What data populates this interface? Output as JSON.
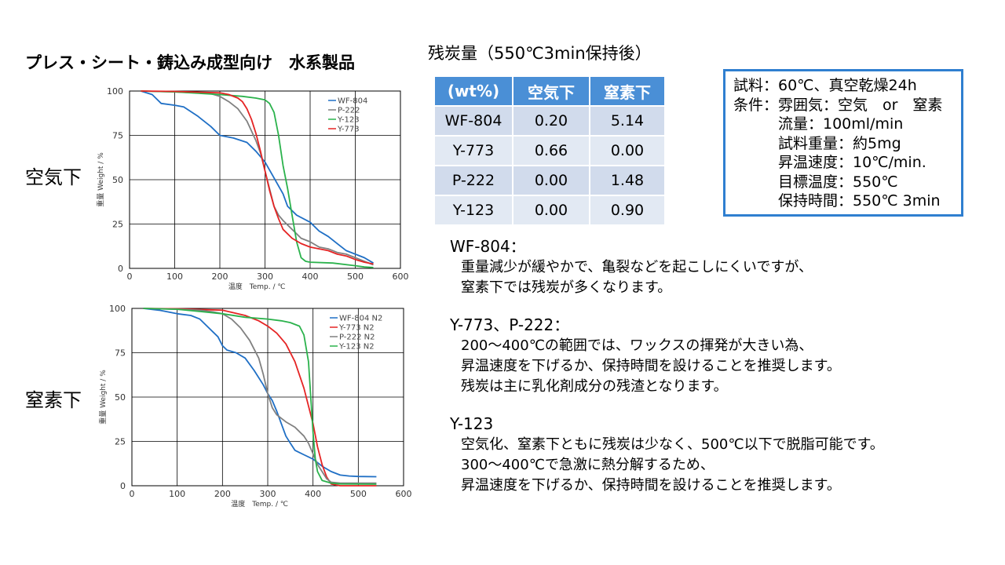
{
  "slide_title": "プレス・シート・鋳込み成型向け　水系製品",
  "side_labels": {
    "air": "空気下",
    "n2": "窒素下"
  },
  "residue": {
    "title": "残炭量（550℃3min保持後）",
    "headers": [
      "(wt%)",
      "空気下",
      "窒素下"
    ],
    "rows": [
      [
        "WF-804",
        "0.20",
        "5.14"
      ],
      [
        "Y-773",
        "0.66",
        "0.00"
      ],
      [
        "P-222",
        "0.00",
        "1.48"
      ],
      [
        "Y-123",
        "0.00",
        "0.90"
      ]
    ]
  },
  "conditions": [
    "試料：60℃、真空乾燥24h",
    "条件：雰囲気：空気　or　窒素",
    "　　　流量：100ml/min",
    "　　　試料重量：約5mg",
    "　　　昇温速度：10℃/min.",
    "　　　目標温度：550℃",
    "　　　保持時間：550℃ 3min"
  ],
  "notes": [
    {
      "head": "WF-804：",
      "lines": [
        "重量減少が緩やかで、亀裂などを起こしにくいですが、",
        "窒素下では残炭が多くなります。"
      ]
    },
    {
      "head": "Y-773、P-222：",
      "lines": [
        "200～400℃の範囲では、ワックスの揮発が大きい為、",
        "昇温速度を下げるか、保持時間を設けることを推奨します。",
        "残炭は主に乳化剤成分の残渣となります。"
      ]
    },
    {
      "head": "Y-123",
      "lines": [
        "空気化、窒素下ともに残炭は少なく、500℃以下で脱脂可能です。",
        "300～400℃で急激に熱分解するため、",
        "昇温速度を下げるか、保持時間を設けることを推奨します。"
      ]
    }
  ],
  "chart_data": [
    {
      "type": "line",
      "atmosphere": "air",
      "xlabel": "温度　Temp. / ℃",
      "ylabel": "重量 Weight / %",
      "xlim": [
        0,
        600
      ],
      "ylim": [
        0,
        100
      ],
      "xticks": [
        "0",
        "100",
        "200",
        "300",
        "400",
        "500",
        "600"
      ],
      "yticks": [
        "0",
        "25",
        "50",
        "75",
        "100"
      ],
      "grid": true,
      "legend_position": "top-right",
      "series": [
        {
          "name": "WF-804",
          "color": "#1f6fc5",
          "points": [
            [
              25,
              100
            ],
            [
              50,
              98
            ],
            [
              70,
              93
            ],
            [
              100,
              92
            ],
            [
              120,
              91
            ],
            [
              150,
              86
            ],
            [
              180,
              80
            ],
            [
              200,
              75
            ],
            [
              230,
              73.5
            ],
            [
              260,
              71
            ],
            [
              280,
              66
            ],
            [
              300,
              60
            ],
            [
              320,
              51
            ],
            [
              340,
              42
            ],
            [
              350,
              35
            ],
            [
              370,
              30
            ],
            [
              400,
              26
            ],
            [
              420,
              21
            ],
            [
              440,
              18
            ],
            [
              460,
              14
            ],
            [
              480,
              10
            ],
            [
              500,
              8
            ],
            [
              520,
              6
            ],
            [
              540,
              3
            ]
          ]
        },
        {
          "name": "P-222",
          "color": "#808080",
          "points": [
            [
              25,
              100
            ],
            [
              100,
              99.5
            ],
            [
              150,
              99
            ],
            [
              180,
              98.5
            ],
            [
              200,
              97
            ],
            [
              220,
              94
            ],
            [
              240,
              90
            ],
            [
              260,
              83
            ],
            [
              280,
              72
            ],
            [
              290,
              65
            ],
            [
              300,
              55
            ],
            [
              310,
              45
            ],
            [
              320,
              35
            ],
            [
              330,
              30
            ],
            [
              340,
              27
            ],
            [
              360,
              22
            ],
            [
              380,
              17
            ],
            [
              400,
              15
            ],
            [
              420,
              12
            ],
            [
              440,
              11
            ],
            [
              460,
              9
            ],
            [
              480,
              8
            ],
            [
              500,
              6
            ],
            [
              520,
              4
            ],
            [
              540,
              2
            ]
          ]
        },
        {
          "name": "Y-123",
          "color": "#2bb24c",
          "points": [
            [
              25,
              100
            ],
            [
              100,
              99.5
            ],
            [
              200,
              98
            ],
            [
              250,
              97
            ],
            [
              280,
              96
            ],
            [
              300,
              95
            ],
            [
              310,
              93
            ],
            [
              320,
              88
            ],
            [
              330,
              75
            ],
            [
              340,
              58
            ],
            [
              350,
              45
            ],
            [
              360,
              30
            ],
            [
              370,
              15
            ],
            [
              380,
              6
            ],
            [
              390,
              4
            ],
            [
              400,
              3.5
            ],
            [
              450,
              3
            ],
            [
              500,
              1.5
            ],
            [
              520,
              0.8
            ],
            [
              540,
              0.5
            ]
          ]
        },
        {
          "name": "Y-773",
          "color": "#e52424",
          "points": [
            [
              25,
              100
            ],
            [
              100,
              99.8
            ],
            [
              200,
              99
            ],
            [
              220,
              98
            ],
            [
              240,
              96
            ],
            [
              250,
              94
            ],
            [
              260,
              90
            ],
            [
              270,
              84
            ],
            [
              280,
              76
            ],
            [
              290,
              66
            ],
            [
              300,
              55
            ],
            [
              310,
              44
            ],
            [
              320,
              35
            ],
            [
              330,
              28
            ],
            [
              340,
              22
            ],
            [
              360,
              17
            ],
            [
              380,
              14
            ],
            [
              400,
              12
            ],
            [
              420,
              11
            ],
            [
              440,
              10
            ],
            [
              460,
              8
            ],
            [
              480,
              7
            ],
            [
              500,
              5
            ],
            [
              520,
              3.5
            ],
            [
              540,
              2.5
            ]
          ]
        }
      ]
    },
    {
      "type": "line",
      "atmosphere": "n2",
      "xlabel": "温度　Temp. / ℃",
      "ylabel": "重量 Weight / %",
      "xlim": [
        0,
        600
      ],
      "ylim": [
        0,
        100
      ],
      "xticks": [
        "0",
        "100",
        "200",
        "300",
        "400",
        "500",
        "600"
      ],
      "yticks": [
        "0",
        "25",
        "50",
        "75",
        "100"
      ],
      "grid": true,
      "legend_position": "top-right",
      "series": [
        {
          "name": "WF-804 N2",
          "color": "#1f6fc5",
          "points": [
            [
              25,
              100
            ],
            [
              60,
              99
            ],
            [
              100,
              97
            ],
            [
              130,
              96
            ],
            [
              150,
              94
            ],
            [
              170,
              89
            ],
            [
              190,
              84
            ],
            [
              200,
              79
            ],
            [
              210,
              76.5
            ],
            [
              230,
              75
            ],
            [
              250,
              72
            ],
            [
              270,
              65
            ],
            [
              290,
              57
            ],
            [
              300,
              52
            ],
            [
              310,
              48
            ],
            [
              320,
              42
            ],
            [
              330,
              35
            ],
            [
              340,
              28
            ],
            [
              350,
              24
            ],
            [
              360,
              20
            ],
            [
              380,
              17.5
            ],
            [
              400,
              15
            ],
            [
              420,
              11
            ],
            [
              440,
              8
            ],
            [
              460,
              6
            ],
            [
              480,
              5.5
            ],
            [
              500,
              5.2
            ],
            [
              540,
              5.1
            ]
          ]
        },
        {
          "name": "Y-773  N2",
          "color": "#e52424",
          "points": [
            [
              25,
              100
            ],
            [
              100,
              99.8
            ],
            [
              200,
              99
            ],
            [
              250,
              96
            ],
            [
              280,
              93
            ],
            [
              300,
              90
            ],
            [
              320,
              86
            ],
            [
              340,
              80
            ],
            [
              360,
              70
            ],
            [
              380,
              55
            ],
            [
              390,
              45
            ],
            [
              400,
              35
            ],
            [
              410,
              22
            ],
            [
              420,
              12
            ],
            [
              430,
              5
            ],
            [
              440,
              1
            ],
            [
              460,
              0
            ],
            [
              540,
              0
            ]
          ]
        },
        {
          "name": "P-222 N2",
          "color": "#808080",
          "points": [
            [
              25,
              100
            ],
            [
              100,
              99.5
            ],
            [
              150,
              99
            ],
            [
              180,
              98
            ],
            [
              200,
              97
            ],
            [
              220,
              94
            ],
            [
              240,
              89
            ],
            [
              260,
              82
            ],
            [
              280,
              72
            ],
            [
              290,
              63
            ],
            [
              300,
              52
            ],
            [
              310,
              44
            ],
            [
              320,
              40
            ],
            [
              340,
              36
            ],
            [
              360,
              33
            ],
            [
              380,
              28
            ],
            [
              390,
              24
            ],
            [
              400,
              18
            ],
            [
              410,
              12
            ],
            [
              420,
              8
            ],
            [
              430,
              4
            ],
            [
              440,
              2
            ],
            [
              460,
              1.5
            ],
            [
              540,
              1.48
            ]
          ]
        },
        {
          "name": "Y-123 N2",
          "color": "#2bb24c",
          "points": [
            [
              25,
              100
            ],
            [
              100,
              99.5
            ],
            [
              200,
              97
            ],
            [
              250,
              95
            ],
            [
              300,
              94
            ],
            [
              330,
              93
            ],
            [
              350,
              92
            ],
            [
              370,
              90
            ],
            [
              380,
              85
            ],
            [
              390,
              70
            ],
            [
              395,
              50
            ],
            [
              400,
              30
            ],
            [
              405,
              15
            ],
            [
              410,
              8
            ],
            [
              420,
              3
            ],
            [
              440,
              1.5
            ],
            [
              460,
              1
            ],
            [
              540,
              0.9
            ]
          ]
        }
      ]
    }
  ]
}
